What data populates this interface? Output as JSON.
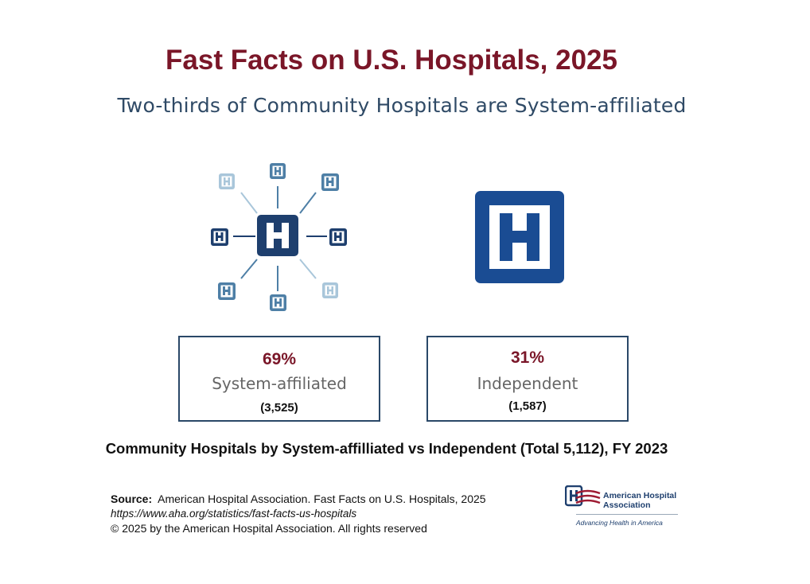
{
  "header": {
    "title": "Fast Facts on U.S. Hospitals, 2025",
    "subtitle": "Two-thirds of Community Hospitals are System-affiliated"
  },
  "icons": {
    "system_network": "hospital-network-icon",
    "independent": "hospital-icon",
    "letter": "H"
  },
  "stats": {
    "system": {
      "percent": "69%",
      "label": "System-affiliated",
      "count": "(3,525)"
    },
    "independent": {
      "percent": "31%",
      "label": "Independent",
      "count": "(1,587)"
    }
  },
  "chart_data": {
    "type": "table",
    "categories": [
      "System-affiliated",
      "Independent"
    ],
    "percent": [
      69,
      31
    ],
    "counts": [
      3525,
      1587
    ],
    "total": 5112
  },
  "caption": "Community Hospitals by System-affilliated vs Independent (Total 5,112), FY 2023",
  "footer": {
    "source_label": "Source:",
    "source_text": "American Hospital Association.  Fast Facts on U.S. Hospitals, 2025",
    "url": "https://www.aha.org/statistics/fast-facts-us-hospitals",
    "copyright": "© 2025 by the American Hospital Association. All rights reserved"
  },
  "logo": {
    "name_line1": "American Hospital",
    "name_line2": "Association",
    "tagline": "Advancing Health in America"
  },
  "colors": {
    "title": "#7a1628",
    "navy": "#1e3f6e",
    "medium_blue": "#4e7fa6",
    "light_blue": "#a9c6da"
  }
}
